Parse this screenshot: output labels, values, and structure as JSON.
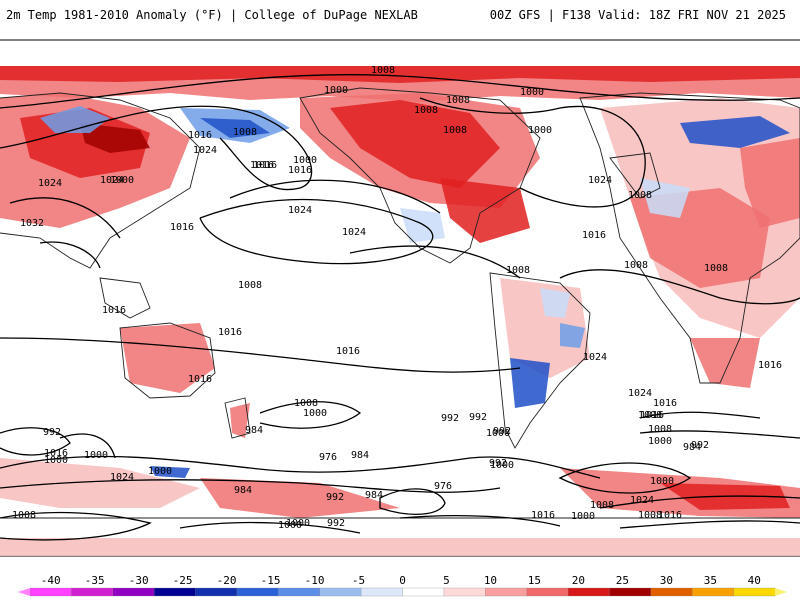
{
  "header": {
    "left_title": "2m Temp 1981-2010 Anomaly (°F) | College of DuPage NEXLAB",
    "right_title": "00Z GFS | F138 Valid: 18Z FRI NOV 21 2025"
  },
  "colors": {
    "land_outline": "#222222",
    "isobar": "#000000",
    "warm_light": "#f8bcbc",
    "warm_mid": "#f07070",
    "warm_strong": "#e02020",
    "warm_extreme": "#a00000",
    "cool_light": "#c8dcf8",
    "cool_mid": "#6f9ee8",
    "cool_strong": "#2050c8"
  },
  "isobar_labels": [
    "1008",
    "1000",
    "1008",
    "1000",
    "1008",
    "1000",
    "1008",
    "1016",
    "1024",
    "1008",
    "1000",
    "1024",
    "1032",
    "1024",
    "1016",
    "1000",
    "1016",
    "1024",
    "1024",
    "1016",
    "1016",
    "1024",
    "1016",
    "1008",
    "1008",
    "1008",
    "1008",
    "1008",
    "1016",
    "1016",
    "1016",
    "1024",
    "1016",
    "1008",
    "1000",
    "984",
    "992",
    "1000",
    "992",
    "992",
    "976",
    "984",
    "976",
    "984",
    "992",
    "1000",
    "1008",
    "1016",
    "1024",
    "1016",
    "1008",
    "1000",
    "984",
    "992",
    "1000",
    "1024",
    "1016",
    "1008",
    "1000",
    "992",
    "1016",
    "1000",
    "1000",
    "1008",
    "1024",
    "1000",
    "984",
    "992",
    "1000",
    "992",
    "1000",
    "1016",
    "1008",
    "1016"
  ],
  "colorbar": {
    "ticks": [
      "-40",
      "-35",
      "-30",
      "-25",
      "-20",
      "-15",
      "-10",
      "-5",
      "0",
      "5",
      "10",
      "15",
      "20",
      "25",
      "30",
      "35",
      "40"
    ],
    "colors": [
      "#ff40ff",
      "#d020d0",
      "#9000c0",
      "#000090",
      "#1030b0",
      "#2a60d8",
      "#5c8ee8",
      "#9cbcf0",
      "#dce8fa",
      "#ffffff",
      "#ffd8d8",
      "#f8a0a0",
      "#f06868",
      "#d81818",
      "#a00000",
      "#e06000",
      "#f8a000",
      "#f8d800"
    ]
  }
}
